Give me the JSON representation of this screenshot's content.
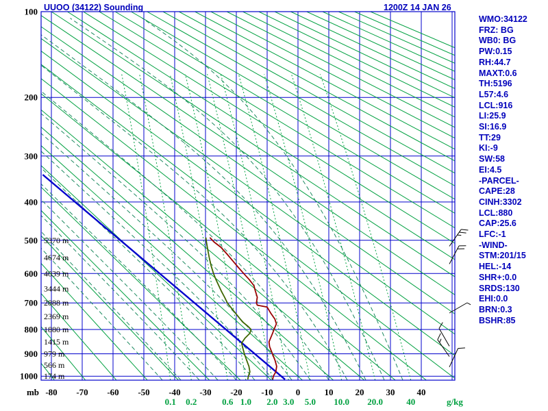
{
  "header": {
    "station_title": "UUOO (34122) Sounding",
    "datetime": "1200Z 14 JAN 26"
  },
  "indices_panel": {
    "lines": [
      "WMO:34122",
      "FRZ: BG",
      "WB0: BG",
      "PW:0.15",
      "RH:44.7",
      "MAXT:0.6",
      "TH:5196",
      "L57:4.6",
      "LCL:916",
      "LI:25.9",
      "SI:16.9",
      "TT:29",
      "KI:-9",
      "SW:58",
      "EI:4.5",
      "-PARCEL-",
      "CAPE:28",
      "CINH:3302",
      "LCL:880",
      "CAP:25.6",
      "LFC:-1",
      "-WIND-",
      "STM:201/15",
      "HEL:-14",
      "SHR+:0.0",
      "SRDS:130",
      "EHI:0.0",
      "BRN:0.3",
      "BSHR:85"
    ]
  },
  "colors": {
    "grid_blue": "#0000cc",
    "adiabat_green": "#00a040",
    "moist_adiabat_teal": "#1d8a60",
    "mixing_ratio_green": "#00a040",
    "temperature_red": "#990000",
    "dewpoint_olive": "#3f6600",
    "parcel_blue": "#0000cc",
    "label_black": "#000000",
    "panel_blue": "#0000bb"
  },
  "chart_data": {
    "type": "line",
    "subtype": "stuve-thermodynamic-sounding",
    "title": "UUOO (34122) Sounding",
    "grid": true,
    "legend": false,
    "pressure_axis": {
      "unit": "mb",
      "ticks": [
        100,
        200,
        300,
        400,
        500,
        600,
        700,
        800,
        900,
        1000
      ],
      "range": [
        100,
        1018
      ]
    },
    "temperature_axis": {
      "unit": "C",
      "ticks": [
        -80,
        -70,
        -60,
        -50,
        -40,
        -30,
        -20,
        -10,
        0,
        10,
        20,
        30,
        40
      ],
      "range": [
        -83,
        51
      ]
    },
    "mixing_ratio_labels": [
      "0.1",
      "0.2",
      "0.6",
      "1.0",
      "2.0",
      "3.0",
      "5.0",
      "10.0",
      "20.0",
      "40"
    ],
    "mixing_ratio_values_gkg": [
      0.1,
      0.2,
      0.6,
      1.0,
      2.0,
      3.0,
      5.0,
      10.0,
      20.0,
      40
    ],
    "mixing_ratio_unit": "g/kg",
    "height_labels": [
      {
        "p": 500,
        "label": "5370 m"
      },
      {
        "p": 550,
        "label": "4674 m"
      },
      {
        "p": 600,
        "label": "4039 m"
      },
      {
        "p": 650,
        "label": "3444 m"
      },
      {
        "p": 700,
        "label": "2888 m"
      },
      {
        "p": 750,
        "label": "2369 m"
      },
      {
        "p": 800,
        "label": "1880 m"
      },
      {
        "p": 850,
        "label": "1415 m"
      },
      {
        "p": 900,
        "label": "979 m"
      },
      {
        "p": 950,
        "label": "566 m"
      },
      {
        "p": 1000,
        "label": "174 m"
      }
    ],
    "temperature_profile_p_c": [
      [
        1015,
        -8.2
      ],
      [
        1000,
        -8.0
      ],
      [
        980,
        -7.2
      ],
      [
        955,
        -6.9
      ],
      [
        930,
        -7.4
      ],
      [
        900,
        -8.3
      ],
      [
        870,
        -9.2
      ],
      [
        850,
        -9.4
      ],
      [
        820,
        -8.4
      ],
      [
        795,
        -7.6
      ],
      [
        778,
        -7.0
      ],
      [
        760,
        -7.5
      ],
      [
        738,
        -8.8
      ],
      [
        715,
        -10.0
      ],
      [
        708,
        -13.2
      ],
      [
        700,
        -13.5
      ],
      [
        680,
        -13.2
      ],
      [
        655,
        -13.9
      ],
      [
        640,
        -14.3
      ],
      [
        620,
        -15.8
      ],
      [
        600,
        -17.6
      ],
      [
        580,
        -19.4
      ],
      [
        560,
        -21.2
      ],
      [
        540,
        -23.0
      ],
      [
        520,
        -25.0
      ],
      [
        505,
        -27.2
      ],
      [
        492,
        -28.6
      ]
    ],
    "dewpoint_profile_p_c": [
      [
        1015,
        -16.3
      ],
      [
        1000,
        -16.1
      ],
      [
        980,
        -15.6
      ],
      [
        955,
        -15.9
      ],
      [
        930,
        -16.6
      ],
      [
        900,
        -17.4
      ],
      [
        875,
        -17.9
      ],
      [
        855,
        -18.3
      ],
      [
        835,
        -17.2
      ],
      [
        815,
        -15.6
      ],
      [
        800,
        -15.2
      ],
      [
        788,
        -16.2
      ],
      [
        770,
        -18.0
      ],
      [
        750,
        -19.4
      ],
      [
        730,
        -20.8
      ],
      [
        710,
        -22.2
      ],
      [
        700,
        -22.9
      ],
      [
        680,
        -23.8
      ],
      [
        660,
        -24.8
      ],
      [
        640,
        -25.7
      ],
      [
        620,
        -26.6
      ],
      [
        600,
        -27.4
      ],
      [
        575,
        -28.2
      ],
      [
        550,
        -28.8
      ],
      [
        525,
        -29.3
      ],
      [
        505,
        -29.7
      ],
      [
        492,
        -29.9
      ]
    ],
    "parcel_line_p_c": [
      [
        1015,
        -4.2
      ],
      [
        338,
        -82.8
      ]
    ],
    "wind_barbs": [
      {
        "p": 517,
        "speed_kt": 25,
        "rot_deg": 35
      },
      {
        "p": 570,
        "speed_kt": 20,
        "rot_deg": 28
      },
      {
        "p": 737,
        "speed_kt": 5,
        "rot_deg": 60
      },
      {
        "p": 868,
        "speed_kt": 10,
        "rot_deg": -30
      },
      {
        "p": 912,
        "speed_kt": 15,
        "rot_deg": -35
      },
      {
        "p": 958,
        "speed_kt": 10,
        "rot_deg": 25
      }
    ],
    "dry_adiabats_theta_c": {
      "start": -80,
      "end": 300,
      "step": 10
    },
    "moist_adiabats_thetaw_c": {
      "start": -44,
      "end": 38,
      "step": 6
    }
  }
}
